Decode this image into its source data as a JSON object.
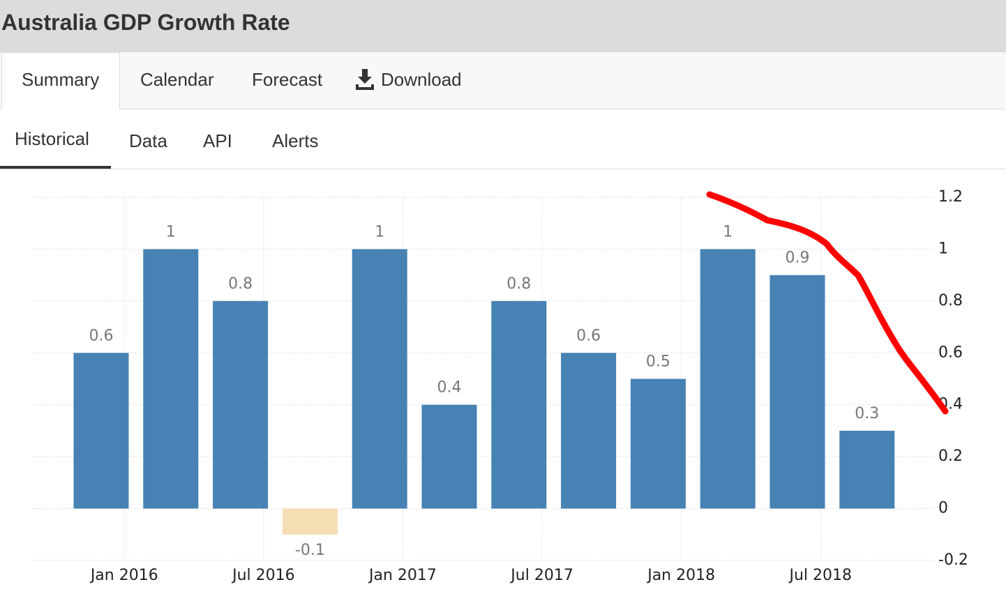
{
  "header": {
    "title": "Australia GDP Growth Rate"
  },
  "tabs": [
    "Summary",
    "Calendar",
    "Forecast",
    "Download"
  ],
  "subtabs": [
    "Historical",
    "Data",
    "API",
    "Alerts"
  ],
  "chart_data": {
    "type": "bar",
    "categories": [
      null,
      null,
      null,
      null,
      null,
      null,
      null,
      null,
      null,
      null,
      null,
      null
    ],
    "values": [
      0.6,
      1,
      0.8,
      -0.1,
      1,
      0.4,
      0.8,
      0.6,
      0.5,
      1,
      0.9,
      0.3
    ],
    "color": "#4682b4",
    "negative_color": "#f5deb3",
    "xtick_labels": [
      "Jan 2016",
      "Jul 2016",
      "Jan 2017",
      "Jul 2017",
      "Jan 2018",
      "Jul 2018"
    ],
    "ylim": [
      -0.2,
      1.2
    ],
    "yticks": [
      -0.2,
      0,
      0.2,
      0.4,
      0.6,
      0.8,
      1,
      1.2
    ],
    "grid": true
  }
}
